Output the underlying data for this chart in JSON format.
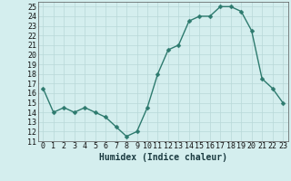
{
  "x": [
    0,
    1,
    2,
    3,
    4,
    5,
    6,
    7,
    8,
    9,
    10,
    11,
    12,
    13,
    14,
    15,
    16,
    17,
    18,
    19,
    20,
    21,
    22,
    23
  ],
  "y": [
    16.5,
    14.0,
    14.5,
    14.0,
    14.5,
    14.0,
    13.5,
    12.5,
    11.5,
    12.0,
    14.5,
    18.0,
    20.5,
    21.0,
    23.5,
    24.0,
    24.0,
    25.0,
    25.0,
    24.5,
    22.5,
    17.5,
    16.5,
    15.0
  ],
  "xlabel": "Humidex (Indice chaleur)",
  "line_color": "#2d7a6e",
  "marker_color": "#2d7a6e",
  "bg_color": "#d4eeee",
  "grid_color": "#b8d8d8",
  "ylim": [
    11,
    25.5
  ],
  "xlim": [
    -0.5,
    23.5
  ],
  "yticks": [
    11,
    12,
    13,
    14,
    15,
    16,
    17,
    18,
    19,
    20,
    21,
    22,
    23,
    24,
    25
  ],
  "xticks": [
    0,
    1,
    2,
    3,
    4,
    5,
    6,
    7,
    8,
    9,
    10,
    11,
    12,
    13,
    14,
    15,
    16,
    17,
    18,
    19,
    20,
    21,
    22,
    23
  ],
  "xtick_labels": [
    "0",
    "1",
    "2",
    "3",
    "4",
    "5",
    "6",
    "7",
    "8",
    "9",
    "10",
    "11",
    "12",
    "13",
    "14",
    "15",
    "16",
    "17",
    "18",
    "19",
    "20",
    "21",
    "22",
    "23"
  ],
  "xlabel_fontsize": 7,
  "tick_fontsize": 6,
  "linewidth": 1.0,
  "markersize": 2.5
}
